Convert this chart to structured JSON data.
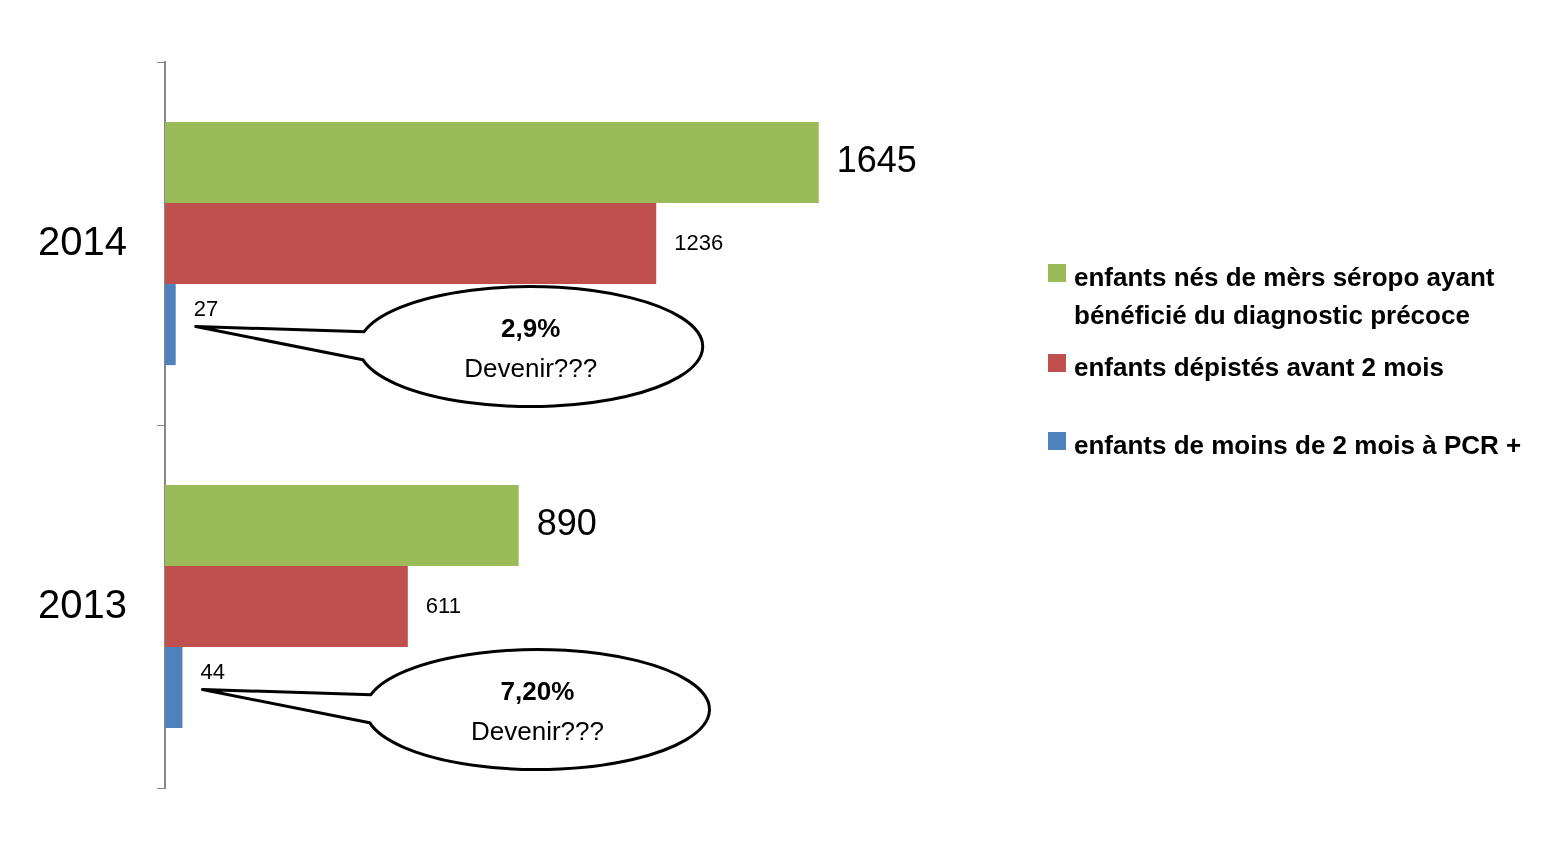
{
  "chart_data": {
    "type": "bar",
    "orientation": "horizontal",
    "categories": [
      "2014",
      "2013"
    ],
    "series": [
      {
        "name": "enfants nés de mèrs séropo ayant bénéficié du diagnostic précoce",
        "color": "#9bbb59",
        "values": [
          1645,
          890
        ]
      },
      {
        "name": "enfants dépistés avant 2 mois",
        "color": "#c0504d",
        "values": [
          1236,
          611
        ]
      },
      {
        "name": "enfants de moins de 2 mois à PCR +",
        "color": "#4f81bd",
        "values": [
          27,
          44
        ]
      }
    ],
    "data_labels": true,
    "legend": "right",
    "grid": false,
    "annotations": [
      "2,9%\nDevenir???",
      "7,20%\nDevenir???"
    ]
  }
}
